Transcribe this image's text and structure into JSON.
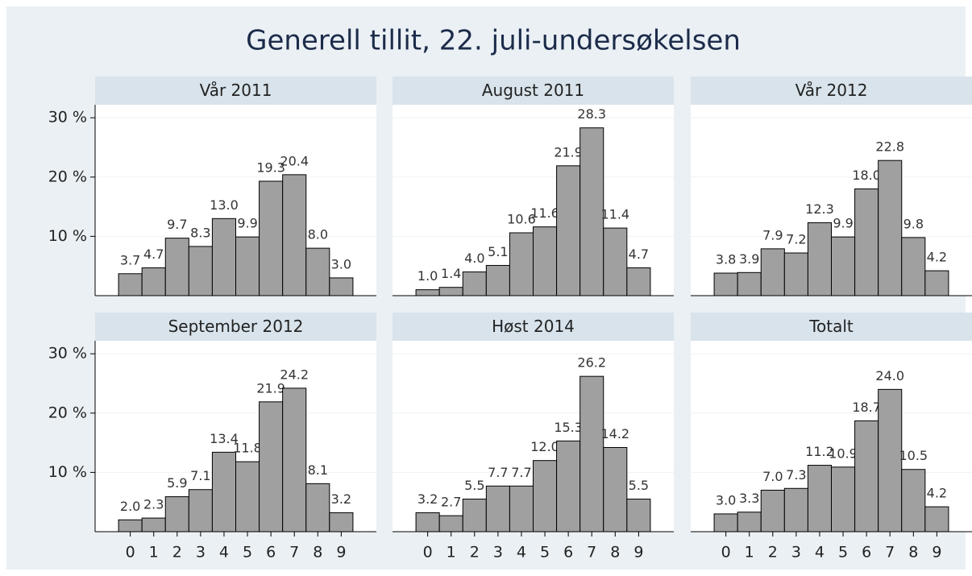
{
  "title": "Generell tillit, 22. juli-undersøkelsen",
  "chart_data": [
    {
      "type": "bar",
      "title": "Vår 2011",
      "categories": [
        "0",
        "1",
        "2",
        "3",
        "4",
        "5",
        "6",
        "7",
        "8",
        "9"
      ],
      "values": [
        3.7,
        4.7,
        9.7,
        8.3,
        13.0,
        9.9,
        19.3,
        20.4,
        8.0,
        3.0
      ],
      "value_labels": [
        "3.7",
        "4.7",
        "9.7",
        "8.3",
        "13.0",
        "9.9",
        "19.3",
        "20.4",
        "8.0",
        "3.0"
      ],
      "color": "#a0a0a0",
      "ylim": [
        0,
        32.2
      ],
      "yticks": [
        {
          "value": 10,
          "label": "10 %"
        },
        {
          "value": 20,
          "label": "20 %"
        },
        {
          "value": 30,
          "label": "30 %"
        }
      ]
    },
    {
      "type": "bar",
      "title": "August 2011",
      "categories": [
        "0",
        "1",
        "2",
        "3",
        "4",
        "5",
        "6",
        "7",
        "8",
        "9"
      ],
      "values": [
        1.0,
        1.4,
        4.0,
        5.1,
        10.6,
        11.6,
        21.9,
        28.3,
        11.4,
        4.7
      ],
      "value_labels": [
        "1.0",
        "1.4",
        "4.0",
        "5.1",
        "10.6",
        "11.6",
        "21.9",
        "28.3",
        "11.4",
        "4.7"
      ],
      "color": "#a0a0a0",
      "ylim": [
        0,
        32.2
      ],
      "yticks": [
        {
          "value": 10,
          "label": "10 %"
        },
        {
          "value": 20,
          "label": "20 %"
        },
        {
          "value": 30,
          "label": "30 %"
        }
      ]
    },
    {
      "type": "bar",
      "title": "Vår 2012",
      "categories": [
        "0",
        "1",
        "2",
        "3",
        "4",
        "5",
        "6",
        "7",
        "8",
        "9"
      ],
      "values": [
        3.8,
        3.9,
        7.9,
        7.2,
        12.3,
        9.9,
        18.0,
        22.8,
        9.8,
        4.2
      ],
      "value_labels": [
        "3.8",
        "3.9",
        "7.9",
        "7.2",
        "12.3",
        "9.9",
        "18.0",
        "22.8",
        "9.8",
        "4.2"
      ],
      "color": "#a0a0a0",
      "ylim": [
        0,
        32.2
      ],
      "yticks": [
        {
          "value": 10,
          "label": "10 %"
        },
        {
          "value": 20,
          "label": "20 %"
        },
        {
          "value": 30,
          "label": "30 %"
        }
      ]
    },
    {
      "type": "bar",
      "title": "September 2012",
      "categories": [
        "0",
        "1",
        "2",
        "3",
        "4",
        "5",
        "6",
        "7",
        "8",
        "9"
      ],
      "values": [
        2.0,
        2.3,
        5.9,
        7.1,
        13.4,
        11.8,
        21.9,
        24.2,
        8.1,
        3.2
      ],
      "value_labels": [
        "2.0",
        "2.3",
        "5.9",
        "7.1",
        "13.4",
        "11.8",
        "21.9",
        "24.2",
        "8.1",
        "3.2"
      ],
      "color": "#a0a0a0",
      "ylim": [
        0,
        32.2
      ],
      "yticks": [
        {
          "value": 10,
          "label": "10 %"
        },
        {
          "value": 20,
          "label": "20 %"
        },
        {
          "value": 30,
          "label": "30 %"
        }
      ]
    },
    {
      "type": "bar",
      "title": "Høst 2014",
      "categories": [
        "0",
        "1",
        "2",
        "3",
        "4",
        "5",
        "6",
        "7",
        "8",
        "9"
      ],
      "values": [
        3.2,
        2.7,
        5.5,
        7.7,
        7.7,
        12.0,
        15.3,
        26.2,
        14.2,
        5.5
      ],
      "value_labels": [
        "3.2",
        "2.7",
        "5.5",
        "7.7",
        "7.7",
        "12.0",
        "15.3",
        "26.2",
        "14.2",
        "5.5"
      ],
      "color": "#a0a0a0",
      "ylim": [
        0,
        32.2
      ],
      "yticks": [
        {
          "value": 10,
          "label": "10 %"
        },
        {
          "value": 20,
          "label": "20 %"
        },
        {
          "value": 30,
          "label": "30 %"
        }
      ]
    },
    {
      "type": "bar",
      "title": "Totalt",
      "categories": [
        "0",
        "1",
        "2",
        "3",
        "4",
        "5",
        "6",
        "7",
        "8",
        "9"
      ],
      "values": [
        3.0,
        3.3,
        7.0,
        7.3,
        11.2,
        10.9,
        18.7,
        24.0,
        10.5,
        4.2
      ],
      "value_labels": [
        "3.0",
        "3.3",
        "7.0",
        "7.3",
        "11.2",
        "10.9",
        "18.7",
        "24.0",
        "10.5",
        "4.2"
      ],
      "color": "#a0a0a0",
      "ylim": [
        0,
        32.2
      ],
      "yticks": [
        {
          "value": 10,
          "label": "10 %"
        },
        {
          "value": 20,
          "label": "20 %"
        },
        {
          "value": 30,
          "label": "30 %"
        }
      ]
    }
  ]
}
